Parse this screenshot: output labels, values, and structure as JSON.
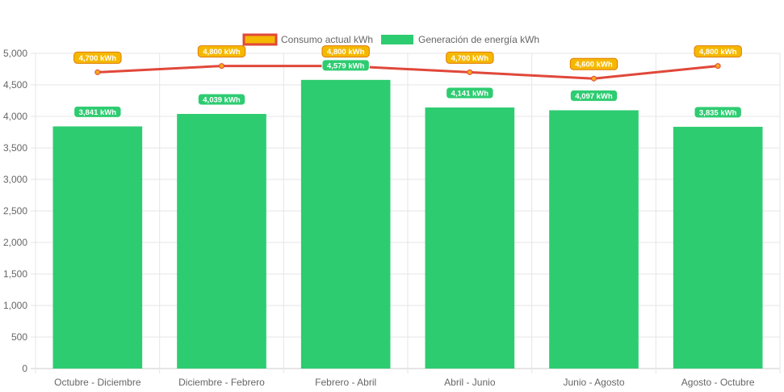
{
  "chart_data": {
    "type": "bar",
    "categories": [
      "Octubre - Diciembre",
      "Diciembre - Febrero",
      "Febrero - Abril",
      "Abril - Junio",
      "Junio - Agosto",
      "Agosto - Octubre"
    ],
    "series": [
      {
        "name": "Consumo actual kWh",
        "type": "line",
        "values": [
          4700,
          4800,
          4800,
          4700,
          4600,
          4800
        ],
        "labels": [
          "4,700 kWh",
          "4,800 kWh",
          "4,800 kWh",
          "4,700 kWh",
          "4,600 kWh",
          "4,800 kWh"
        ],
        "line_color": "#e0483a",
        "label_color": "#f5b800",
        "label_border": "#e07a00",
        "point_color": "#f7a81b"
      },
      {
        "name": "Generación de energía kWh",
        "type": "bar",
        "values": [
          3841,
          4039,
          4579,
          4141,
          4097,
          3835
        ],
        "labels": [
          "3,841 kWh",
          "4,039 kWh",
          "4,579 kWh",
          "4,141 kWh",
          "4,097 kWh",
          "3,835 kWh"
        ],
        "color": "#2ecc71"
      }
    ],
    "y_ticks": [
      "0",
      "500",
      "1,000",
      "1,500",
      "2,000",
      "2,500",
      "3,000",
      "3,500",
      "4,000",
      "4,500",
      "5,000"
    ],
    "ylim": [
      0,
      5000
    ],
    "grid": true,
    "legend_position": "top-center"
  }
}
